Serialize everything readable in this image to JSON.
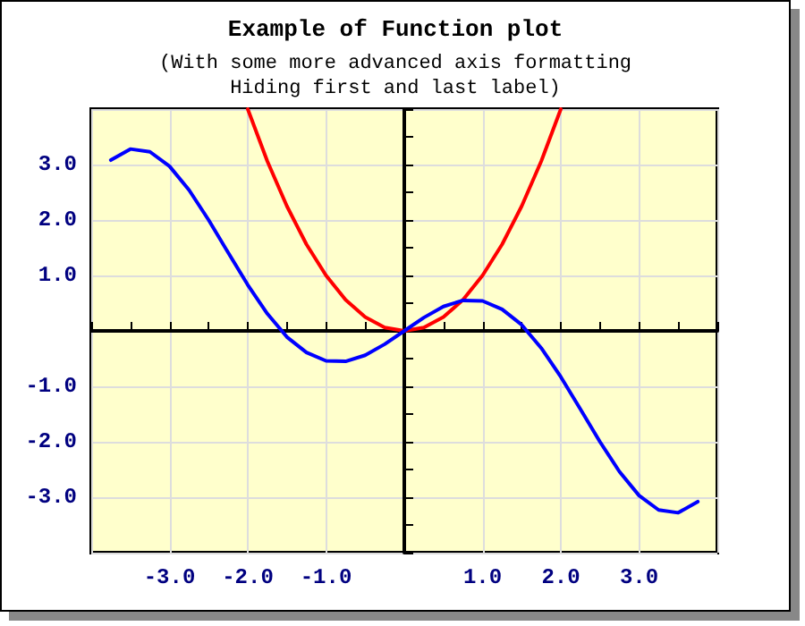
{
  "chart_data": {
    "type": "line",
    "title": "Example of Function plot",
    "subtitle": "(With some more advanced axis formatting\nHiding first and last label)",
    "series": [
      {
        "color": "#ff0000",
        "x": [
          -2,
          -1.75,
          -1.5,
          -1.25,
          -1,
          -0.75,
          -0.5,
          -0.25,
          0,
          0.25,
          0.5,
          0.75,
          1,
          1.25,
          1.5,
          1.75,
          2
        ],
        "values": [
          4,
          3.06,
          2.25,
          1.56,
          1,
          0.56,
          0.25,
          0.06,
          0,
          0.06,
          0.25,
          0.56,
          1,
          1.56,
          2.25,
          3.06,
          4
        ]
      },
      {
        "color": "#0000ff",
        "x": [
          -3.75,
          -3.5,
          -3.25,
          -3,
          -2.75,
          -2.5,
          -2.25,
          -2,
          -1.75,
          -1.5,
          -1.25,
          -1,
          -0.75,
          -0.5,
          -0.25,
          0,
          0.25,
          0.5,
          0.75,
          1,
          1.25,
          1.5,
          1.75,
          2,
          2.25,
          2.5,
          2.75,
          3,
          3.25,
          3.5,
          3.75
        ],
        "values": [
          3.08,
          3.28,
          3.23,
          2.97,
          2.54,
          2,
          1.41,
          0.83,
          0.31,
          -0.11,
          -0.39,
          -0.54,
          -0.55,
          -0.44,
          -0.24,
          0,
          0.24,
          0.44,
          0.55,
          0.54,
          0.39,
          0.11,
          -0.31,
          -0.83,
          -1.41,
          -2,
          -2.54,
          -2.97,
          -3.23,
          -3.28,
          -3.08
        ]
      }
    ],
    "xlim": [
      -4,
      4
    ],
    "xticks": [
      {
        "value": -4,
        "label": null
      },
      {
        "value": -3,
        "label": "-3.0"
      },
      {
        "value": -2,
        "label": "-2.0"
      },
      {
        "value": -1,
        "label": "-1.0"
      },
      {
        "value": 0,
        "label": null
      },
      {
        "value": 1,
        "label": "1.0"
      },
      {
        "value": 2,
        "label": "2.0"
      },
      {
        "value": 3,
        "label": "3.0"
      },
      {
        "value": 4,
        "label": null
      }
    ],
    "ylim": [
      -4,
      4
    ],
    "yticks": [
      {
        "value": -4,
        "label": null
      },
      {
        "value": -3,
        "label": "-3.0"
      },
      {
        "value": -2,
        "label": "-2.0"
      },
      {
        "value": -1,
        "label": "-1.0"
      },
      {
        "value": 0,
        "label": null
      },
      {
        "value": 1,
        "label": "1.0"
      },
      {
        "value": 2,
        "label": "2.0"
      },
      {
        "value": 3,
        "label": "3.0"
      },
      {
        "value": 4,
        "label": null
      }
    ],
    "grid": true,
    "marker": "none",
    "line_style": "solid"
  }
}
